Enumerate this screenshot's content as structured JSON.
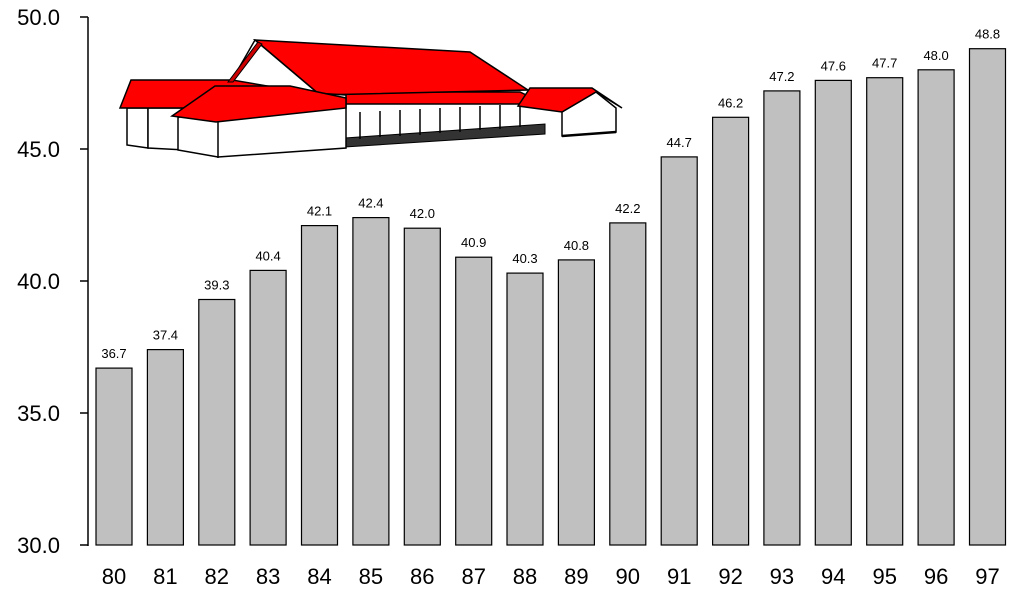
{
  "chart_data": {
    "type": "bar",
    "title": "",
    "xlabel": "",
    "ylabel": "",
    "categories": [
      "80",
      "81",
      "82",
      "83",
      "84",
      "85",
      "86",
      "87",
      "88",
      "89",
      "90",
      "91",
      "92",
      "93",
      "94",
      "95",
      "96",
      "97"
    ],
    "values": [
      36.7,
      37.4,
      39.3,
      40.4,
      42.1,
      42.4,
      42.0,
      40.9,
      40.3,
      40.8,
      42.2,
      44.7,
      46.2,
      47.2,
      47.6,
      47.7,
      48.0,
      48.8
    ],
    "data_labels": [
      "36.7",
      "37.4",
      "39.3",
      "40.4",
      "42.1",
      "42.4",
      "42.0",
      "40.9",
      "40.3",
      "40.8",
      "42.2",
      "44.7",
      "46.2",
      "47.2",
      "47.6",
      "47.7",
      "48.0",
      "48.8"
    ],
    "ylim": [
      30.0,
      50.0
    ],
    "yticks": [
      30.0,
      35.0,
      40.0,
      45.0,
      50.0
    ],
    "ytick_labels": [
      "30.0",
      "35.0",
      "40.0",
      "45.0",
      "50.0"
    ],
    "grid": false,
    "legend": "none",
    "colors": {
      "bar_fill": "#c0c0c0",
      "bar_stroke": "#000000",
      "roof": "#ff0000",
      "wall": "#ffffff"
    },
    "decoration": "building-illustration"
  }
}
